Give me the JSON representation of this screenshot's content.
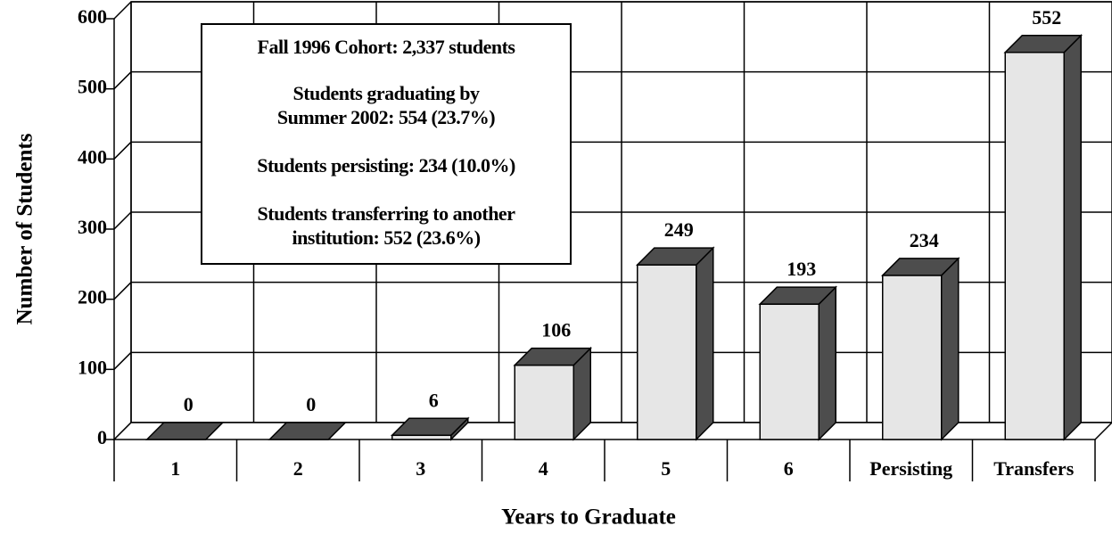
{
  "chart_data": {
    "type": "bar3d",
    "y_label": "Number of Students",
    "x_label": "Years to Graduate",
    "categories": [
      "1",
      "2",
      "3",
      "4",
      "5",
      "6",
      "Persisting",
      "Transfers"
    ],
    "values": [
      0,
      0,
      6,
      106,
      249,
      193,
      234,
      552
    ],
    "front_color": "#e6e6e6",
    "side_color": "#4d4d4d",
    "ylim": [
      0,
      600
    ],
    "yticks": [
      0,
      100,
      200,
      300,
      400,
      500,
      600
    ],
    "grid": true,
    "annotation": [
      "Fall 1996 Cohort:  2,337 students",
      "Students graduating by",
      "Summer 2002:  554 (23.7%)",
      "Students persisting:  234 (10.0%)",
      "Students transferring to another",
      "institution:  552 (23.6%)"
    ]
  }
}
